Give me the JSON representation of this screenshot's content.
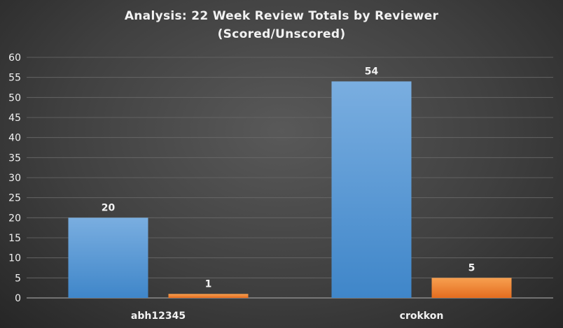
{
  "chart_data": {
    "type": "bar",
    "title": "Analysis:  22 Week Review Totals  by Reviewer",
    "subtitle": "(Scored/Unscored)",
    "categories": [
      "abh12345",
      "crokkon"
    ],
    "series": [
      {
        "values": [
          20,
          54
        ],
        "color": "#5b9bd5"
      },
      {
        "values": [
          1,
          5
        ],
        "color": "#ed7d31"
      }
    ],
    "ylim": [
      0,
      60
    ],
    "yticks": [
      0,
      5,
      10,
      15,
      20,
      25,
      30,
      35,
      40,
      45,
      50,
      55,
      60
    ],
    "grid": true,
    "legend": "none",
    "xlabel": "",
    "ylabel": ""
  }
}
